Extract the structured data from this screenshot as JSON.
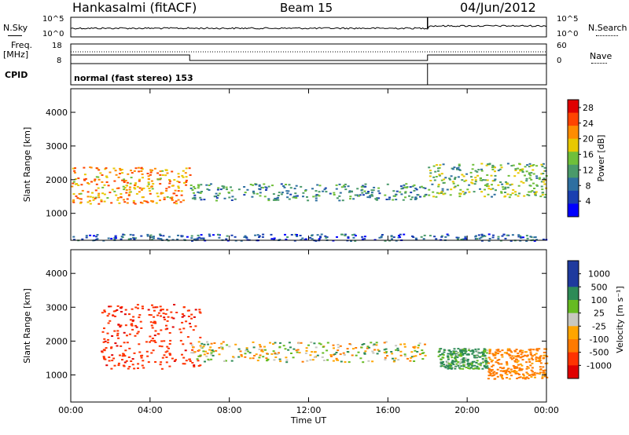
{
  "header": {
    "station": "Hankasalmi (fitACF)",
    "beam": "Beam 15",
    "date": "04/Jun/2012"
  },
  "noise_panel": {
    "left_label": "N.Sky",
    "right_label": "N.Search",
    "ticks_left": [
      "10^5",
      "10^0"
    ],
    "ticks_right": [
      "10^5",
      "10^0"
    ]
  },
  "freq_panel": {
    "left_label_1": "Freq.",
    "left_label_2": "[MHz]",
    "right_label": "Nave",
    "ticks_left": [
      "18",
      "8"
    ],
    "ticks_right": [
      "60",
      "0"
    ]
  },
  "cpid": {
    "label": "CPID",
    "program": "normal (fast stereo) 153"
  },
  "colors": {
    "power": [
      "#0000ff",
      "#1a3fb0",
      "#2e6fa0",
      "#4a9a6a",
      "#6fbf3a",
      "#e8c800",
      "#ff8c00",
      "#ff4400",
      "#e00000"
    ],
    "velocity_pos": [
      "#1f3a9e",
      "#2e8b57",
      "#66bb22"
    ],
    "velocity_neutral": "#c8c8c0",
    "velocity_neg": [
      "#ffa500",
      "#ff7a00",
      "#ff3300",
      "#e00000"
    ]
  },
  "chart_data": [
    {
      "type": "heatmap",
      "title": "",
      "xlabel": "",
      "ylabel": "Slant Range [km]",
      "x_ticks": [
        "00:00",
        "04:00",
        "08:00",
        "12:00",
        "16:00",
        "20:00",
        "00:00"
      ],
      "y_ticks": [
        "1000",
        "2000",
        "3000",
        "4000"
      ],
      "xlim_hours": [
        0,
        24
      ],
      "ylim_km": [
        200,
        4700
      ],
      "colorbar": {
        "label": "Power [dB]",
        "ticks": [
          "4",
          "8",
          "12",
          "16",
          "20",
          "24",
          "28"
        ],
        "range": [
          0,
          30
        ]
      },
      "features": [
        {
          "t0": 0,
          "t1": 6,
          "r0": 1300,
          "r1": 2400,
          "value": 22
        },
        {
          "t0": 6,
          "t1": 18,
          "r0": 1400,
          "r1": 1900,
          "value": 10
        },
        {
          "t0": 18,
          "t1": 24,
          "r0": 1500,
          "r1": 2500,
          "value": 14
        },
        {
          "t0": 0,
          "t1": 24,
          "r0": 200,
          "r1": 400,
          "value": 6
        }
      ]
    },
    {
      "type": "heatmap",
      "title": "",
      "xlabel": "Time UT",
      "ylabel": "Slant Range [km]",
      "x_ticks": [
        "00:00",
        "04:00",
        "08:00",
        "12:00",
        "16:00",
        "20:00",
        "00:00"
      ],
      "y_ticks": [
        "1000",
        "2000",
        "3000",
        "4000"
      ],
      "xlim_hours": [
        0,
        24
      ],
      "ylim_km": [
        200,
        4700
      ],
      "colorbar": {
        "label": "Velocity [m s⁻¹]",
        "ticks": [
          "1000",
          "500",
          "100",
          "25",
          "-25",
          "-100",
          "-500",
          "-1000"
        ],
        "range": [
          -1000,
          1000
        ]
      },
      "features": [
        {
          "t0": 1.5,
          "t1": 6.5,
          "r0": 1200,
          "r1": 3100,
          "value": -700
        },
        {
          "t0": 6,
          "t1": 18,
          "r0": 1400,
          "r1": 2000,
          "value": 0
        },
        {
          "t0": 18.5,
          "t1": 21,
          "r0": 1200,
          "r1": 1800,
          "value": 150
        },
        {
          "t0": 21,
          "t1": 24,
          "r0": 900,
          "r1": 1800,
          "value": -200
        }
      ]
    }
  ]
}
